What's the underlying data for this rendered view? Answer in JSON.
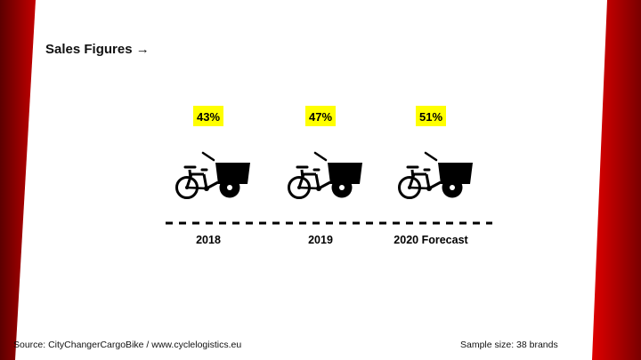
{
  "slide": {
    "title": "Sales Figures",
    "title_arrow": "→",
    "source": "Source: CityChangerCargoBike  / www.cyclelogistics.eu",
    "sample_size": "Sample size:  38 brands"
  },
  "colors": {
    "accent_red": "#d40000",
    "dark_red": "#7a0000",
    "highlight": "#ffff00",
    "ink": "#000000"
  },
  "chart_data": {
    "type": "pictogram",
    "categories": [
      "2018",
      "2019",
      "2020 Forecast"
    ],
    "values": [
      43,
      47,
      51
    ],
    "value_labels": [
      "43%",
      "47%",
      "51%"
    ],
    "unit": "%",
    "icon": "cargo-bike-icon"
  }
}
